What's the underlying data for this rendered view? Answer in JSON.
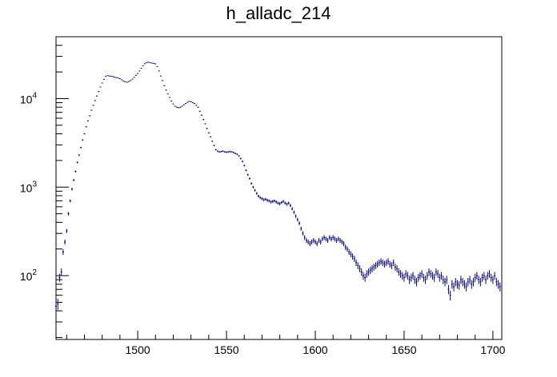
{
  "chart_data": {
    "type": "scatter",
    "title": "h_alladc_214",
    "xlabel": "",
    "ylabel": "",
    "xlim": [
      1454,
      1705
    ],
    "ylim": [
      19,
      50000
    ],
    "y_scale": "log",
    "x_ticks": [
      1500,
      1550,
      1600,
      1650,
      1700
    ],
    "x_tick_labels": [
      "1500",
      "1550",
      "1600",
      "1650",
      "1700"
    ],
    "y_ticks": [
      100,
      1000,
      10000
    ],
    "y_tick_labels": [
      {
        "base": "10",
        "exp": "2"
      },
      {
        "base": "10",
        "exp": "3"
      },
      {
        "base": "10",
        "exp": "4"
      }
    ],
    "grid": false,
    "legend": "none",
    "marker_color": "#000080",
    "series": [
      {
        "points": [
          [
            1454,
            45
          ],
          [
            1455,
            48
          ],
          [
            1456,
            95
          ],
          [
            1457,
            110
          ],
          [
            1458,
            185
          ],
          [
            1459,
            240
          ],
          [
            1460,
            320
          ],
          [
            1461,
            500
          ],
          [
            1462,
            700
          ],
          [
            1463,
            950
          ],
          [
            1464,
            1200
          ],
          [
            1465,
            1500
          ],
          [
            1466,
            1900
          ],
          [
            1467,
            2300
          ],
          [
            1468,
            2800
          ],
          [
            1469,
            3400
          ],
          [
            1470,
            4000
          ],
          [
            1471,
            4800
          ],
          [
            1472,
            5600
          ],
          [
            1473,
            6400
          ],
          [
            1474,
            7400
          ],
          [
            1475,
            8400
          ],
          [
            1476,
            9500
          ],
          [
            1477,
            10700
          ],
          [
            1478,
            12000
          ],
          [
            1479,
            13500
          ],
          [
            1480,
            15000
          ],
          [
            1481,
            16500
          ],
          [
            1482,
            17800
          ],
          [
            1483,
            18200
          ],
          [
            1484,
            18000
          ],
          [
            1485,
            17900
          ],
          [
            1486,
            17700
          ],
          [
            1487,
            17500
          ],
          [
            1488,
            17300
          ],
          [
            1489,
            17100
          ],
          [
            1490,
            16800
          ],
          [
            1491,
            16300
          ],
          [
            1492,
            15800
          ],
          [
            1493,
            15500
          ],
          [
            1494,
            15300
          ],
          [
            1495,
            15600
          ],
          [
            1496,
            16000
          ],
          [
            1497,
            16600
          ],
          [
            1498,
            17400
          ],
          [
            1499,
            18300
          ],
          [
            1500,
            19200
          ],
          [
            1501,
            20500
          ],
          [
            1502,
            22000
          ],
          [
            1503,
            23500
          ],
          [
            1504,
            24800
          ],
          [
            1505,
            25500
          ],
          [
            1506,
            25800
          ],
          [
            1507,
            25500
          ],
          [
            1508,
            25200
          ],
          [
            1509,
            25000
          ],
          [
            1510,
            24700
          ],
          [
            1511,
            23000
          ],
          [
            1512,
            20500
          ],
          [
            1513,
            18000
          ],
          [
            1514,
            16000
          ],
          [
            1515,
            14000
          ],
          [
            1516,
            12500
          ],
          [
            1517,
            11300
          ],
          [
            1518,
            10300
          ],
          [
            1519,
            9400
          ],
          [
            1520,
            8700
          ],
          [
            1521,
            8200
          ],
          [
            1522,
            8000
          ],
          [
            1523,
            7900
          ],
          [
            1524,
            8000
          ],
          [
            1525,
            8200
          ],
          [
            1526,
            8500
          ],
          [
            1527,
            8800
          ],
          [
            1528,
            9100
          ],
          [
            1529,
            9300
          ],
          [
            1530,
            9200
          ],
          [
            1531,
            9000
          ],
          [
            1532,
            8800
          ],
          [
            1533,
            8400
          ],
          [
            1534,
            8000
          ],
          [
            1535,
            7200
          ],
          [
            1536,
            6500
          ],
          [
            1537,
            5800
          ],
          [
            1538,
            5200
          ],
          [
            1539,
            4600
          ],
          [
            1540,
            4100
          ],
          [
            1541,
            3700
          ],
          [
            1542,
            3300
          ],
          [
            1543,
            2950
          ],
          [
            1544,
            2650
          ],
          [
            1545,
            2550
          ],
          [
            1546,
            2500
          ],
          [
            1547,
            2520
          ],
          [
            1548,
            2550
          ],
          [
            1549,
            2500
          ],
          [
            1550,
            2480
          ],
          [
            1551,
            2500
          ],
          [
            1552,
            2520
          ],
          [
            1553,
            2500
          ],
          [
            1554,
            2450
          ],
          [
            1555,
            2400
          ],
          [
            1556,
            2350
          ],
          [
            1557,
            2250
          ],
          [
            1558,
            2100
          ],
          [
            1559,
            1950
          ],
          [
            1560,
            1750
          ],
          [
            1561,
            1550
          ],
          [
            1562,
            1380
          ],
          [
            1563,
            1250
          ],
          [
            1564,
            1100
          ],
          [
            1565,
            1000
          ],
          [
            1566,
            920
          ],
          [
            1567,
            850
          ],
          [
            1568,
            790
          ],
          [
            1569,
            760
          ],
          [
            1570,
            740
          ],
          [
            1571,
            720
          ],
          [
            1572,
            730
          ],
          [
            1573,
            710
          ],
          [
            1574,
            700
          ],
          [
            1575,
            680
          ],
          [
            1576,
            690
          ],
          [
            1577,
            700
          ],
          [
            1578,
            680
          ],
          [
            1579,
            660
          ],
          [
            1580,
            650
          ],
          [
            1581,
            670
          ],
          [
            1582,
            690
          ],
          [
            1583,
            660
          ],
          [
            1584,
            640
          ],
          [
            1585,
            660
          ],
          [
            1586,
            620
          ],
          [
            1587,
            570
          ],
          [
            1588,
            520
          ],
          [
            1589,
            470
          ],
          [
            1590,
            430
          ],
          [
            1591,
            390
          ],
          [
            1592,
            340
          ],
          [
            1593,
            300
          ],
          [
            1594,
            270
          ],
          [
            1595,
            250
          ],
          [
            1596,
            240
          ],
          [
            1597,
            230
          ],
          [
            1598,
            240
          ],
          [
            1599,
            250
          ],
          [
            1600,
            240
          ],
          [
            1601,
            230
          ],
          [
            1602,
            250
          ],
          [
            1603,
            240
          ],
          [
            1604,
            260
          ],
          [
            1605,
            270
          ],
          [
            1606,
            260
          ],
          [
            1607,
            250
          ],
          [
            1608,
            270
          ],
          [
            1609,
            260
          ],
          [
            1610,
            270
          ],
          [
            1611,
            260
          ],
          [
            1612,
            250
          ],
          [
            1613,
            260
          ],
          [
            1614,
            250
          ],
          [
            1615,
            240
          ],
          [
            1616,
            230
          ],
          [
            1617,
            210
          ],
          [
            1618,
            200
          ],
          [
            1619,
            185
          ],
          [
            1620,
            175
          ],
          [
            1621,
            165
          ],
          [
            1622,
            155
          ],
          [
            1623,
            140
          ],
          [
            1624,
            130
          ],
          [
            1625,
            120
          ],
          [
            1626,
            110
          ],
          [
            1627,
            100
          ],
          [
            1628,
            95
          ],
          [
            1629,
            105
          ],
          [
            1630,
            110
          ],
          [
            1631,
            115
          ],
          [
            1632,
            120
          ],
          [
            1633,
            125
          ],
          [
            1634,
            130
          ],
          [
            1635,
            135
          ],
          [
            1636,
            140
          ],
          [
            1637,
            145
          ],
          [
            1638,
            140
          ],
          [
            1639,
            135
          ],
          [
            1640,
            140
          ],
          [
            1641,
            145
          ],
          [
            1642,
            135
          ],
          [
            1643,
            130
          ],
          [
            1644,
            140
          ],
          [
            1645,
            125
          ],
          [
            1646,
            120
          ],
          [
            1647,
            110
          ],
          [
            1648,
            105
          ],
          [
            1649,
            100
          ],
          [
            1650,
            95
          ],
          [
            1651,
            105
          ],
          [
            1652,
            100
          ],
          [
            1653,
            90
          ],
          [
            1654,
            95
          ],
          [
            1655,
            100
          ],
          [
            1656,
            90
          ],
          [
            1657,
            85
          ],
          [
            1658,
            95
          ],
          [
            1659,
            100
          ],
          [
            1660,
            105
          ],
          [
            1661,
            95
          ],
          [
            1662,
            90
          ],
          [
            1663,
            100
          ],
          [
            1664,
            110
          ],
          [
            1665,
            105
          ],
          [
            1666,
            100
          ],
          [
            1667,
            95
          ],
          [
            1668,
            110
          ],
          [
            1669,
            105
          ],
          [
            1670,
            95
          ],
          [
            1671,
            100
          ],
          [
            1672,
            90
          ],
          [
            1673,
            85
          ],
          [
            1674,
            90
          ],
          [
            1675,
            70
          ],
          [
            1676,
            60
          ],
          [
            1677,
            80
          ],
          [
            1678,
            75
          ],
          [
            1679,
            85
          ],
          [
            1680,
            80
          ],
          [
            1681,
            78
          ],
          [
            1682,
            90
          ],
          [
            1683,
            85
          ],
          [
            1684,
            80
          ],
          [
            1685,
            75
          ],
          [
            1686,
            85
          ],
          [
            1687,
            90
          ],
          [
            1688,
            80
          ],
          [
            1689,
            85
          ],
          [
            1690,
            95
          ],
          [
            1691,
            100
          ],
          [
            1692,
            90
          ],
          [
            1693,
            85
          ],
          [
            1694,
            95
          ],
          [
            1695,
            100
          ],
          [
            1696,
            90
          ],
          [
            1697,
            100
          ],
          [
            1698,
            105
          ],
          [
            1699,
            95
          ],
          [
            1700,
            90
          ],
          [
            1701,
            100
          ],
          [
            1702,
            85
          ],
          [
            1703,
            80
          ],
          [
            1704,
            75
          ]
        ]
      }
    ]
  }
}
